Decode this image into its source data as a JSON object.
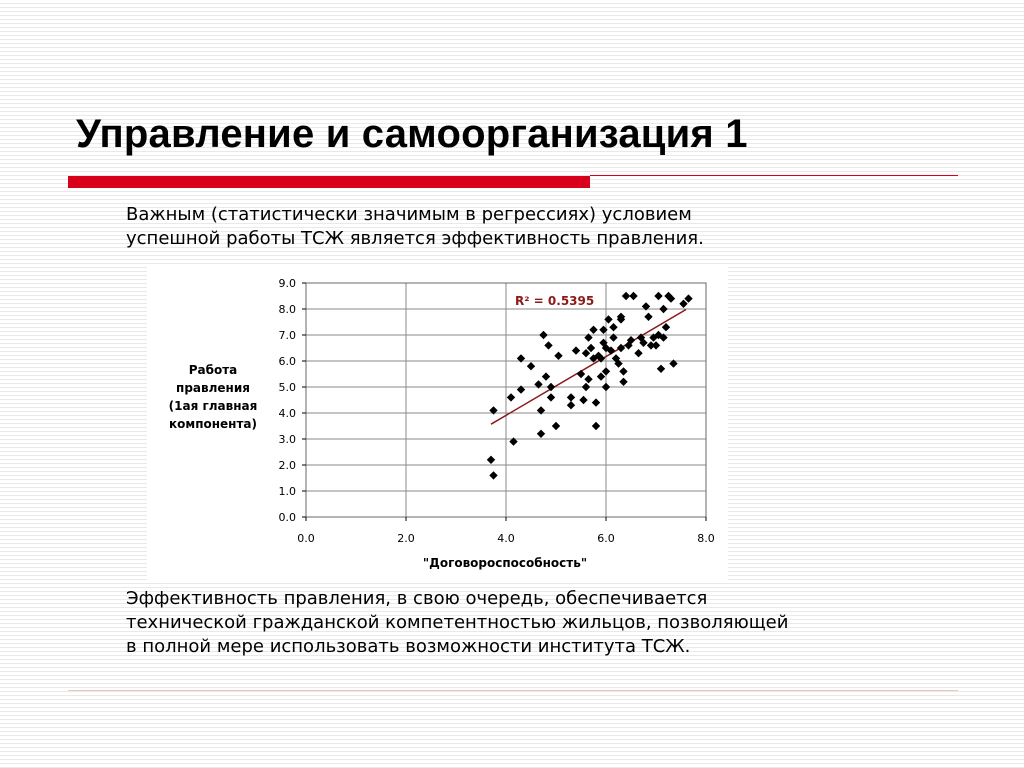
{
  "title": "Управление и самоорганизация 1",
  "paragraph1": {
    "line1": "Важным (статистически значимым в регрессиях) условием",
    "line2": "успешной работы ТСЖ является эффективность правления."
  },
  "paragraph2": {
    "line1": "Эффективность правления, в свою очередь, обеспечивается",
    "line2": "технической гражданской компетентностью жильцов, позволяющей",
    "line3": "в полной мере использовать возможности института ТСЖ."
  },
  "colors": {
    "accent": "#d9001b",
    "trendline": "#8b1a1a",
    "r2_label": "#8b1a1a",
    "markers": "#000000"
  },
  "chart_data": {
    "type": "scatter",
    "title": "",
    "xlabel": "\"Договороспособность\"",
    "ylabel_lines": [
      "Работа",
      "правления",
      "(1ая главная",
      "компонента)"
    ],
    "xlim": [
      0,
      8
    ],
    "ylim": [
      0,
      9
    ],
    "x_ticks": [
      "0.0",
      "2.0",
      "4.0",
      "6.0",
      "8.0"
    ],
    "y_ticks": [
      "0.0",
      "1.0",
      "2.0",
      "3.0",
      "4.0",
      "5.0",
      "6.0",
      "7.0",
      "8.0",
      "9.0"
    ],
    "grid": true,
    "legend": "none",
    "marker": "diamond",
    "r2_label": "R² = 0.5395",
    "trendline": {
      "type": "linear",
      "x": [
        3.7,
        7.6
      ],
      "y": [
        3.57,
        7.98
      ]
    },
    "points": [
      [
        3.7,
        2.2
      ],
      [
        3.75,
        1.6
      ],
      [
        3.75,
        4.1
      ],
      [
        4.1,
        4.6
      ],
      [
        4.15,
        2.9
      ],
      [
        4.3,
        6.1
      ],
      [
        4.3,
        4.9
      ],
      [
        4.5,
        5.8
      ],
      [
        4.65,
        5.1
      ],
      [
        4.7,
        3.2
      ],
      [
        4.7,
        4.1
      ],
      [
        4.75,
        7.0
      ],
      [
        4.8,
        5.4
      ],
      [
        4.85,
        6.6
      ],
      [
        4.9,
        5.0
      ],
      [
        4.9,
        4.6
      ],
      [
        5.0,
        3.5
      ],
      [
        5.05,
        6.2
      ],
      [
        5.3,
        4.6
      ],
      [
        5.3,
        4.3
      ],
      [
        5.4,
        6.4
      ],
      [
        5.5,
        5.5
      ],
      [
        5.55,
        4.5
      ],
      [
        5.6,
        6.3
      ],
      [
        5.6,
        5.0
      ],
      [
        5.65,
        5.3
      ],
      [
        5.65,
        6.9
      ],
      [
        5.7,
        6.5
      ],
      [
        5.75,
        7.2
      ],
      [
        5.75,
        6.1
      ],
      [
        5.8,
        3.5
      ],
      [
        5.8,
        4.4
      ],
      [
        5.85,
        6.2
      ],
      [
        5.9,
        6.1
      ],
      [
        5.9,
        5.4
      ],
      [
        5.95,
        6.7
      ],
      [
        5.95,
        7.2
      ],
      [
        6.0,
        5.6
      ],
      [
        6.0,
        5.0
      ],
      [
        6.0,
        6.5
      ],
      [
        6.05,
        7.6
      ],
      [
        6.1,
        6.4
      ],
      [
        6.15,
        7.3
      ],
      [
        6.15,
        6.9
      ],
      [
        6.2,
        6.1
      ],
      [
        6.25,
        5.9
      ],
      [
        6.3,
        7.6
      ],
      [
        6.3,
        7.7
      ],
      [
        6.3,
        6.5
      ],
      [
        6.35,
        5.2
      ],
      [
        6.35,
        5.6
      ],
      [
        6.4,
        8.5
      ],
      [
        6.45,
        6.6
      ],
      [
        6.5,
        6.8
      ],
      [
        6.55,
        8.5
      ],
      [
        6.65,
        6.3
      ],
      [
        6.7,
        6.9
      ],
      [
        6.75,
        6.7
      ],
      [
        6.8,
        8.1
      ],
      [
        6.85,
        7.7
      ],
      [
        6.9,
        6.6
      ],
      [
        6.95,
        6.9
      ],
      [
        7.0,
        6.6
      ],
      [
        7.05,
        7.0
      ],
      [
        7.05,
        8.5
      ],
      [
        7.1,
        5.7
      ],
      [
        7.15,
        6.9
      ],
      [
        7.15,
        8.0
      ],
      [
        7.2,
        7.3
      ],
      [
        7.25,
        8.5
      ],
      [
        7.3,
        8.4
      ],
      [
        7.35,
        5.9
      ],
      [
        7.55,
        8.2
      ],
      [
        7.65,
        8.4
      ]
    ]
  }
}
